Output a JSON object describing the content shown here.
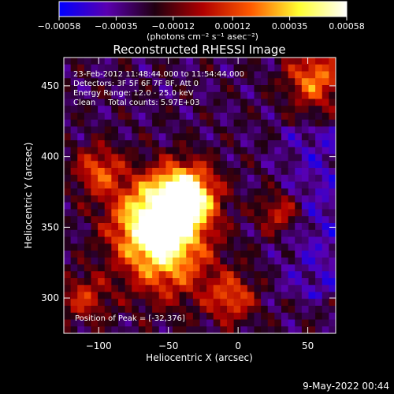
{
  "chart_data": {
    "type": "heatmap",
    "title": "Reconstructed RHESSI Image",
    "xlabel": "Heliocentric X (arcsec)",
    "ylabel": "Heliocentric Y (arcsec)",
    "xlim": [
      -125,
      70
    ],
    "ylim": [
      275,
      470
    ],
    "xticks": [
      -100,
      -50,
      0,
      50
    ],
    "xtick_labels": [
      "−100",
      "−50",
      "0",
      "50"
    ],
    "yticks": [
      300,
      350,
      400,
      450
    ],
    "ytick_labels": [
      "300",
      "350",
      "400",
      "450"
    ],
    "colorbar": {
      "range": [
        -0.00058,
        0.00058
      ],
      "ticks": [
        -0.00058,
        -0.00035,
        -0.00012,
        0.00012,
        0.00035,
        0.00058
      ],
      "tick_labels": [
        "−0.00058",
        "−0.00035",
        "−0.00012",
        "0.00012",
        "0.00035",
        "0.00058"
      ],
      "unit_label": "(photons cm⁻² s⁻¹ asec⁻²)",
      "colors": [
        "#0000ff",
        "#5a00b0",
        "#200010",
        "#b00000",
        "#ff5a00",
        "#ffff30",
        "#ffffff"
      ]
    },
    "annotations": {
      "line1": "23-Feb-2012 11:48:44.000 to 11:54:44.000",
      "line2": "Detectors: 3F 5F 6F 7F 8F, Att 0",
      "line3": "Energy Range: 12.0 - 25.0 keV",
      "line4": "Clean     Total counts: 5.97E+03",
      "peak": "Position of Peak = [-32,376]"
    },
    "peak_position": [
      -32,
      376
    ],
    "sources": [
      {
        "x": -38,
        "y": 372,
        "sigma": 15,
        "amp": 1.0
      },
      {
        "x": -62,
        "y": 355,
        "sigma": 20,
        "amp": 0.8
      },
      {
        "x": -50,
        "y": 330,
        "sigma": 22,
        "amp": 0.55
      },
      {
        "x": -100,
        "y": 390,
        "sigma": 12,
        "amp": 0.45
      },
      {
        "x": 55,
        "y": 455,
        "sigma": 14,
        "amp": 0.55
      },
      {
        "x": 30,
        "y": 360,
        "sigma": 10,
        "amp": 0.4
      },
      {
        "x": -5,
        "y": 300,
        "sigma": 12,
        "amp": 0.45
      },
      {
        "x": -110,
        "y": 300,
        "sigma": 12,
        "amp": 0.35
      }
    ],
    "footer_date": "9-May-2022 00:44"
  }
}
